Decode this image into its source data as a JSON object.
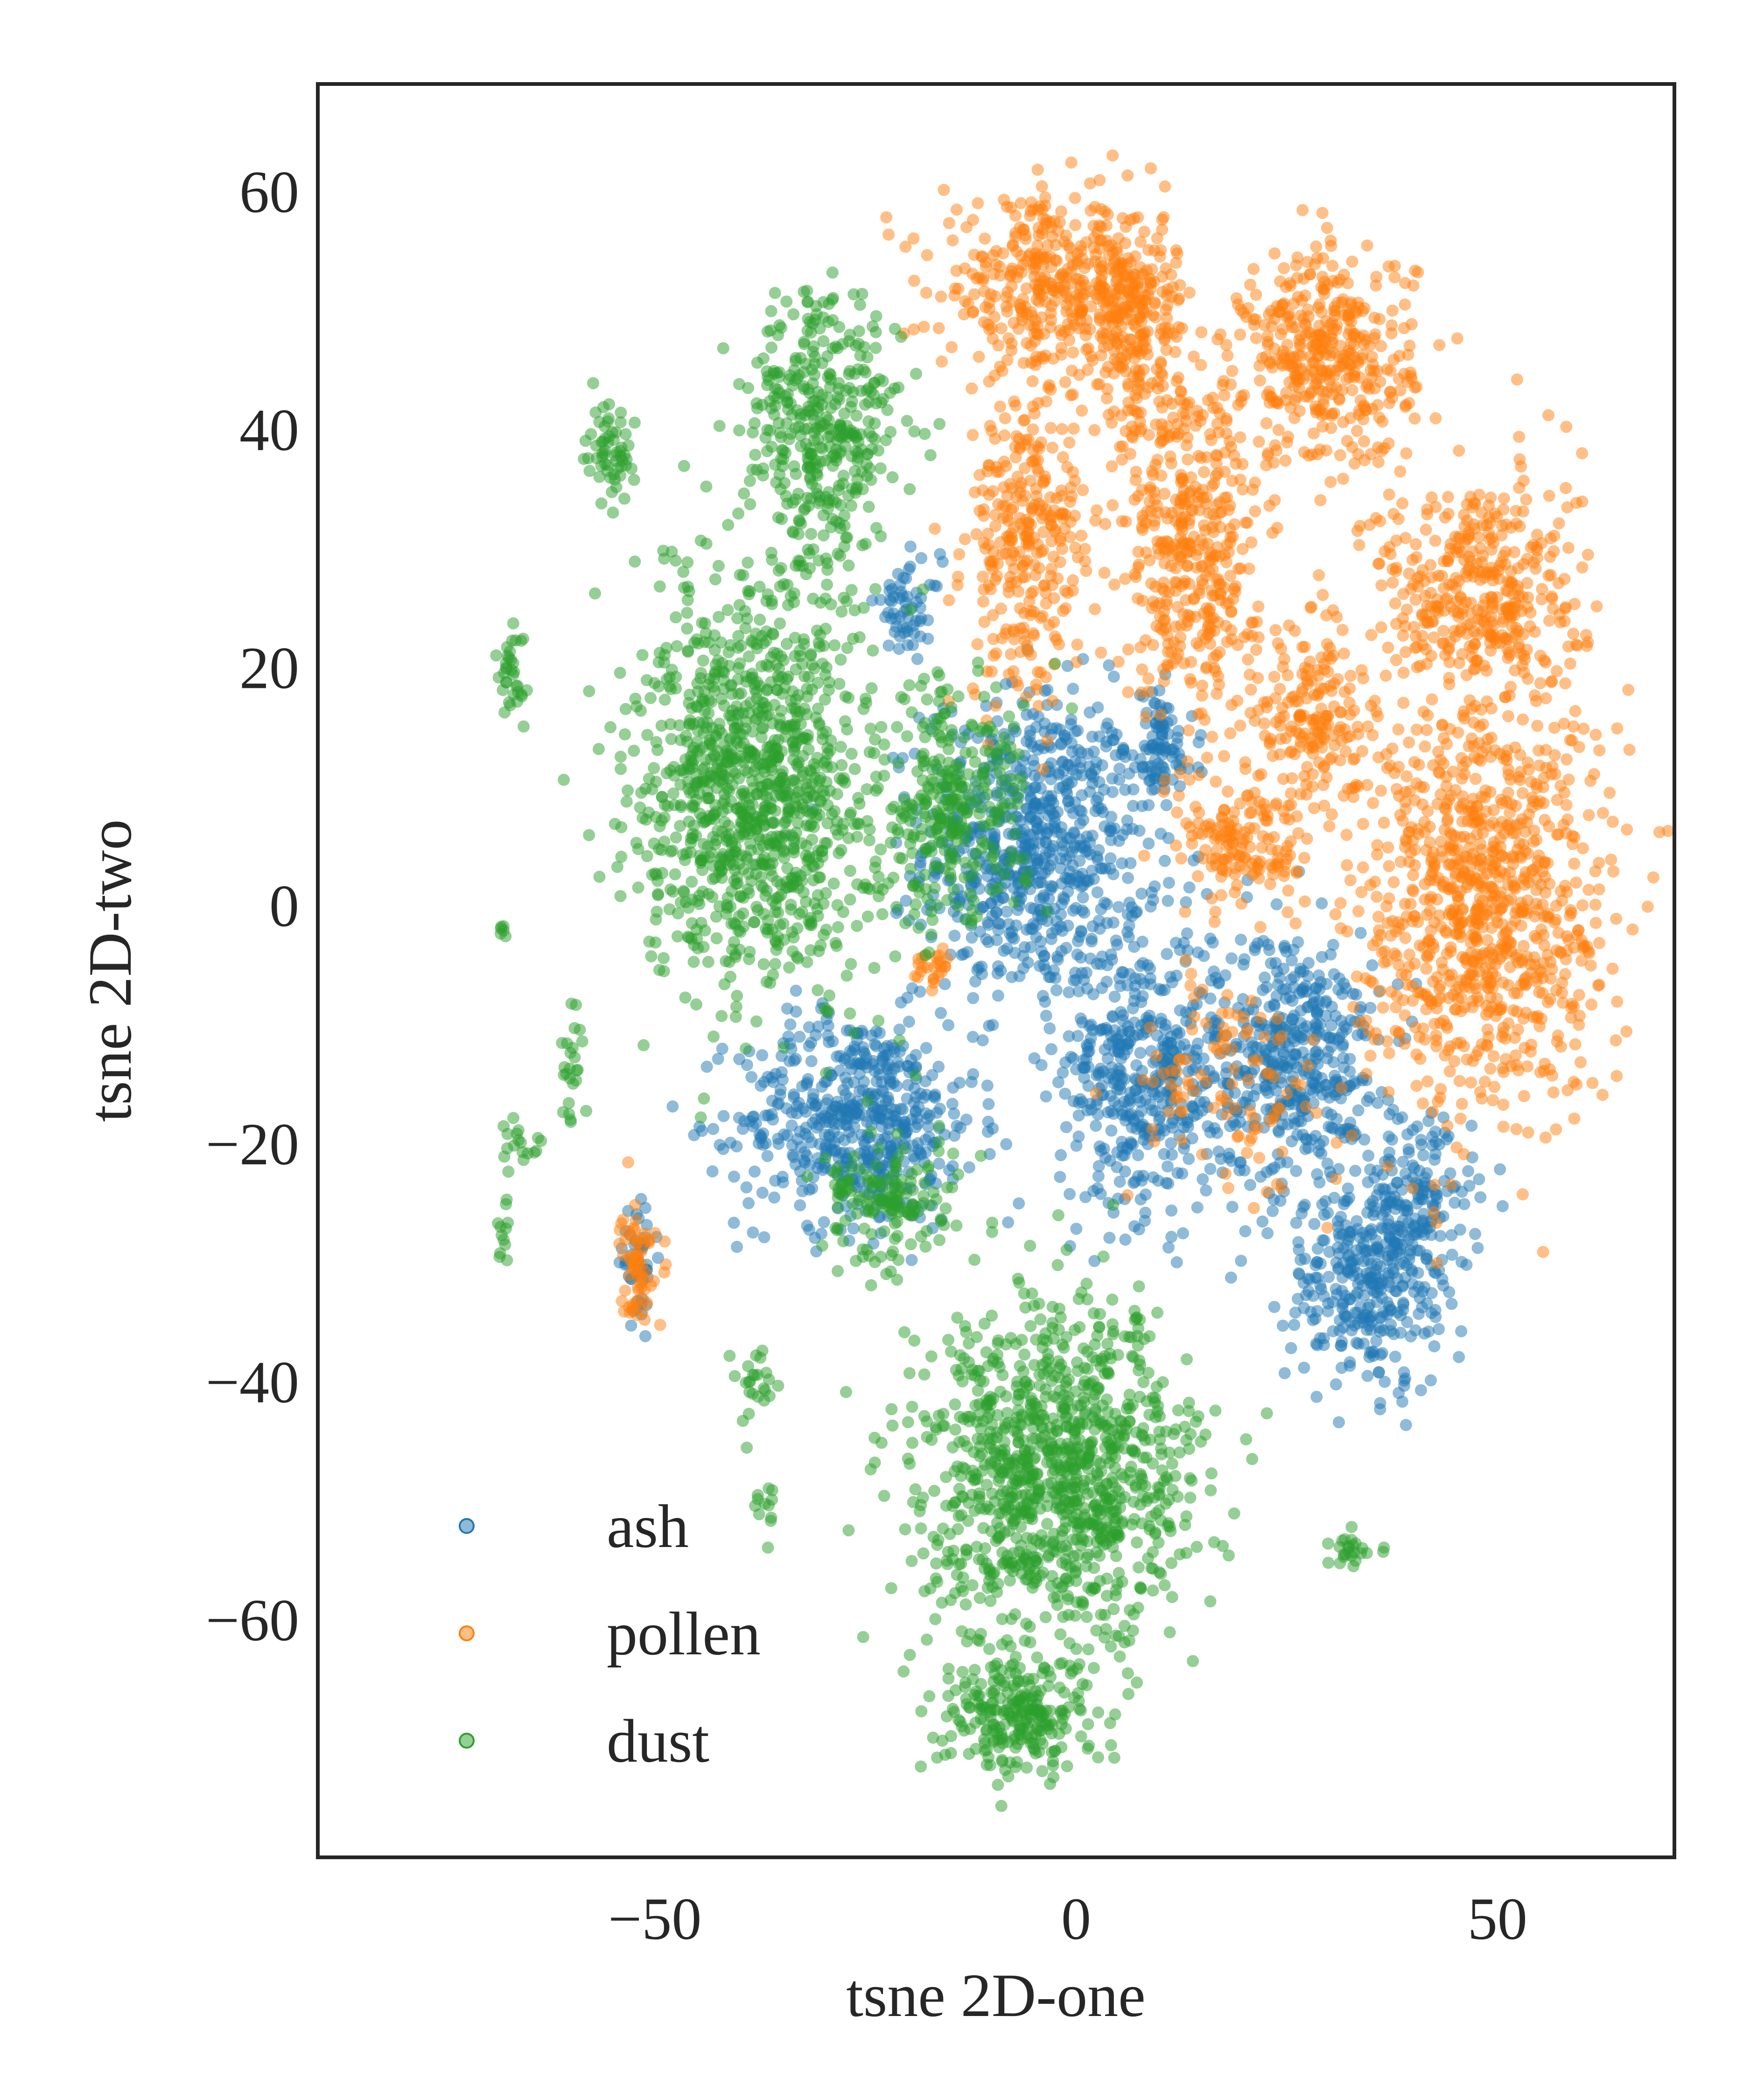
{
  "chart_data": {
    "type": "scatter",
    "title": "",
    "xlabel": "tsne 2D-one",
    "ylabel": "tsne 2D-two",
    "xlim": [
      -90,
      71
    ],
    "ylim": [
      -80,
      69
    ],
    "xticks": [
      -50,
      0,
      50
    ],
    "xtick_labels": [
      "−50",
      "0",
      "50"
    ],
    "yticks": [
      60,
      40,
      20,
      0,
      -20,
      -40,
      -60
    ],
    "ytick_labels": [
      "60",
      "40",
      "20",
      "0",
      "−20",
      "−40",
      "−60"
    ],
    "grid": false,
    "legend_position": "bottom-left",
    "series": [
      {
        "name": "ash",
        "color": "#1f77b4",
        "clusters": [
          {
            "cx": -5,
            "cy": 5,
            "rx": 13,
            "ry": 13,
            "n": 700
          },
          {
            "cx": -26,
            "cy": -18,
            "rx": 14,
            "ry": 9,
            "n": 550
          },
          {
            "cx": 8,
            "cy": -14,
            "rx": 10,
            "ry": 12,
            "n": 450
          },
          {
            "cx": 26,
            "cy": -13,
            "rx": 10,
            "ry": 11,
            "n": 450
          },
          {
            "cx": 34,
            "cy": -32,
            "rx": 9,
            "ry": 9,
            "n": 280
          },
          {
            "cx": 40,
            "cy": -26,
            "rx": 7,
            "ry": 8,
            "n": 200
          },
          {
            "cx": 10,
            "cy": 13,
            "rx": 4,
            "ry": 5,
            "n": 90
          },
          {
            "cx": -20,
            "cy": 25,
            "rx": 4,
            "ry": 4,
            "n": 60
          },
          {
            "cx": -52,
            "cy": -30,
            "rx": 2,
            "ry": 4,
            "n": 50
          }
        ]
      },
      {
        "name": "pollen",
        "color": "#ff7f0e",
        "clusters": [
          {
            "cx": -3,
            "cy": 52,
            "rx": 13,
            "ry": 7,
            "n": 380
          },
          {
            "cx": 7,
            "cy": 48,
            "rx": 6,
            "ry": 10,
            "n": 250
          },
          {
            "cx": 30,
            "cy": 46,
            "rx": 10,
            "ry": 9,
            "n": 400
          },
          {
            "cx": -6,
            "cy": 30,
            "rx": 7,
            "ry": 13,
            "n": 300
          },
          {
            "cx": 14,
            "cy": 30,
            "rx": 8,
            "ry": 14,
            "n": 400
          },
          {
            "cx": 48,
            "cy": 26,
            "rx": 12,
            "ry": 11,
            "n": 420
          },
          {
            "cx": 28,
            "cy": 16,
            "rx": 6,
            "ry": 8,
            "n": 170
          },
          {
            "cx": 48,
            "cy": 0,
            "rx": 15,
            "ry": 17,
            "n": 900
          },
          {
            "cx": 20,
            "cy": 5,
            "rx": 8,
            "ry": 5,
            "n": 150
          },
          {
            "cx": 18,
            "cy": -15,
            "rx": 12,
            "ry": 10,
            "n": 110
          },
          {
            "cx": -52,
            "cy": -30,
            "rx": 2,
            "ry": 5,
            "n": 70
          },
          {
            "cx": -17,
            "cy": -5,
            "rx": 2,
            "ry": 1.5,
            "n": 25
          }
        ]
      },
      {
        "name": "dust",
        "color": "#2ca02c",
        "clusters": [
          {
            "cx": -38,
            "cy": 10,
            "rx": 14,
            "ry": 17,
            "n": 1100
          },
          {
            "cx": -30,
            "cy": 40,
            "rx": 9,
            "ry": 12,
            "n": 400
          },
          {
            "cx": -15,
            "cy": 8,
            "rx": 9,
            "ry": 10,
            "n": 300
          },
          {
            "cx": -2,
            "cy": -48,
            "rx": 16,
            "ry": 14,
            "n": 1100
          },
          {
            "cx": -7,
            "cy": -68,
            "rx": 9,
            "ry": 5,
            "n": 250
          },
          {
            "cx": -22,
            "cy": -25,
            "rx": 8,
            "ry": 5,
            "n": 150
          },
          {
            "cx": -55,
            "cy": 38,
            "rx": 3,
            "ry": 4,
            "n": 60
          },
          {
            "cx": -67,
            "cy": 20,
            "rx": 1.5,
            "ry": 5,
            "n": 35
          },
          {
            "cx": -60,
            "cy": -14,
            "rx": 1.5,
            "ry": 5,
            "n": 25
          },
          {
            "cx": -66,
            "cy": -20,
            "rx": 2,
            "ry": 2,
            "n": 18
          },
          {
            "cx": -38,
            "cy": -40,
            "rx": 2,
            "ry": 3,
            "n": 25
          },
          {
            "cx": 33,
            "cy": -54,
            "rx": 3,
            "ry": 2,
            "n": 25
          },
          {
            "cx": -37,
            "cy": -50,
            "rx": 2,
            "ry": 2,
            "n": 12
          },
          {
            "cx": -68,
            "cy": -28,
            "rx": 1,
            "ry": 3,
            "n": 12
          },
          {
            "cx": -68,
            "cy": -2,
            "rx": 1,
            "ry": 1,
            "n": 6
          }
        ]
      }
    ]
  }
}
